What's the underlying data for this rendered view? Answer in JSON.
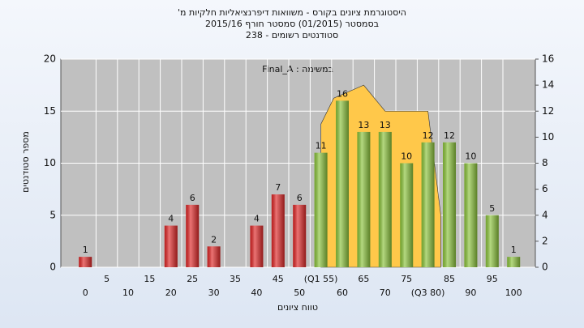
{
  "chart_data": {
    "type": "bar",
    "title": [
      "היסטוגרמת ציונים בקורס - משוואות דיפרנציאליות חלקיות מ'",
      "בסמסטר (01/2015) סמסטר חורף 2015/16",
      "סטודנטים רשומים - 238"
    ],
    "annotation": "במשימה : Final_A",
    "x_label": "טווח ציונים",
    "y_label": "מספר סטודנטים",
    "categories": [
      "0",
      "5",
      "10",
      "15",
      "20",
      "25",
      "30",
      "35",
      "40",
      "45",
      "50",
      "(Q1 55)",
      "60",
      "65",
      "70",
      "75",
      "(Q3 80)",
      "85",
      "90",
      "95",
      "100"
    ],
    "values": [
      1,
      0,
      0,
      0,
      4,
      6,
      2,
      0,
      4,
      7,
      6,
      11,
      16,
      13,
      13,
      10,
      12,
      12,
      10,
      5,
      1
    ],
    "value_labels": [
      "1",
      null,
      null,
      null,
      "4",
      "6",
      "2",
      null,
      "4",
      "7",
      "6",
      "11",
      "16",
      "13",
      "13",
      "10",
      "12",
      "12",
      "10",
      "5",
      "1"
    ],
    "colors": [
      "#e02828",
      "#e02828",
      "#e02828",
      "#e02828",
      "#e02828",
      "#e02828",
      "#e02828",
      "#e02828",
      "#e02828",
      "#e02828",
      "#e02828",
      "#8cc43c",
      "#8cc43c",
      "#8cc43c",
      "#8cc43c",
      "#8cc43c",
      "#8cc43c",
      "#8cc43c",
      "#8cc43c",
      "#8cc43c",
      "#8cc43c"
    ],
    "area": {
      "x": [
        55,
        58,
        65,
        70,
        80,
        83
      ],
      "values": [
        11,
        13,
        14,
        12,
        12,
        4
      ],
      "axis": "y2",
      "color": "#ffc84a"
    },
    "ylim": [
      0,
      20
    ],
    "yticks": [
      0,
      5,
      10,
      15,
      20
    ],
    "y2lim": [
      0,
      16
    ],
    "y2ticks": [
      0,
      2,
      4,
      6,
      8,
      10,
      12,
      14,
      16
    ],
    "grid": true
  }
}
